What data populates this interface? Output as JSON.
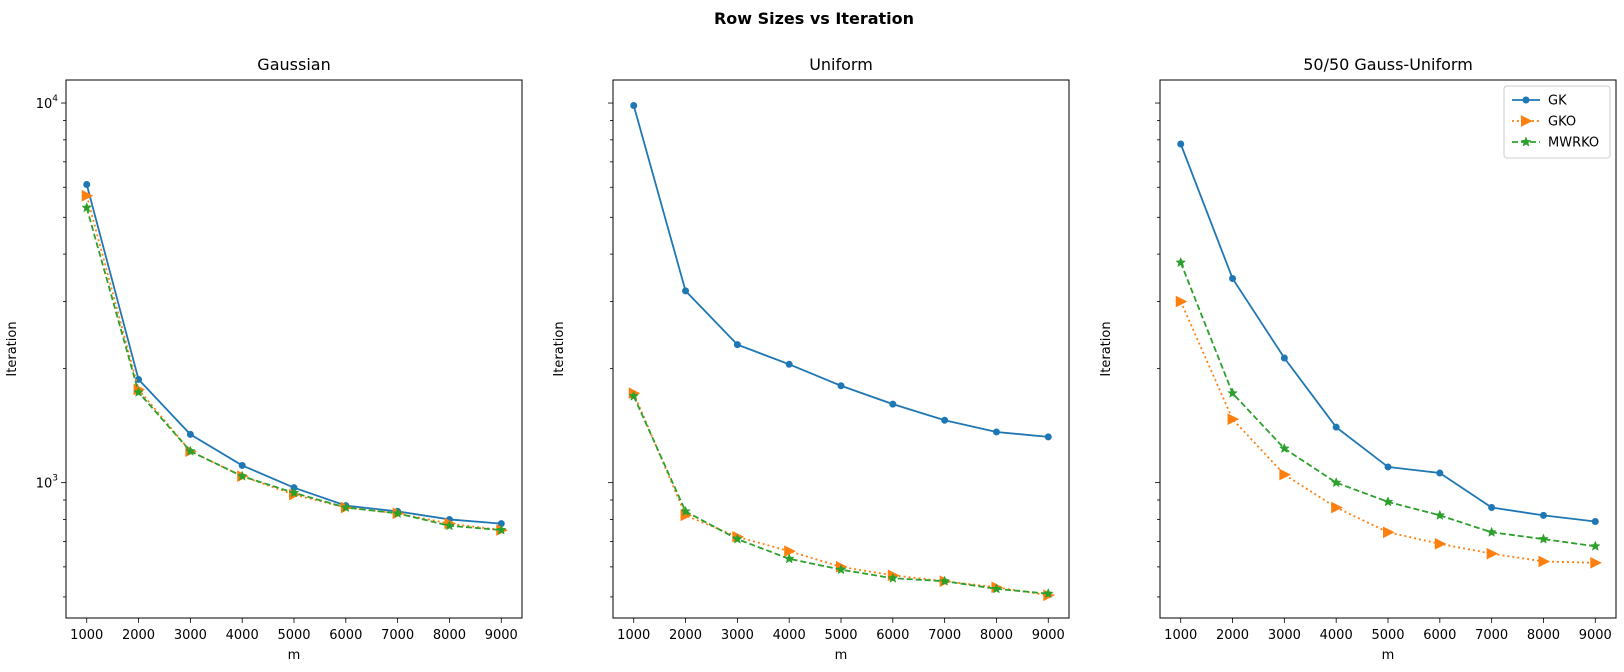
{
  "figure": {
    "suptitle": "Row Sizes vs Iteration"
  },
  "chart_data": [
    {
      "type": "line",
      "title": "Gaussian",
      "xlabel": "m",
      "ylabel": "Iteration",
      "yscale": "log",
      "xlim": [
        600,
        9400
      ],
      "ylim": [
        440,
        11500
      ],
      "x": [
        1000,
        2000,
        3000,
        4000,
        5000,
        6000,
        7000,
        8000,
        9000
      ],
      "xticks": [
        "1000",
        "2000",
        "3000",
        "4000",
        "5000",
        "6000",
        "7000",
        "8000",
        "9000"
      ],
      "yticks": [
        {
          "value": 1000,
          "label": "10³"
        },
        {
          "value": 10000,
          "label": "10⁴"
        }
      ],
      "grid": false,
      "series": [
        {
          "name": "GK",
          "color": "#1f77b4",
          "dash": "solid",
          "marker": "circle",
          "values": [
            6100,
            1870,
            1340,
            1110,
            970,
            870,
            840,
            800,
            780
          ]
        },
        {
          "name": "GKO",
          "color": "#ff7f0e",
          "dash": "dotted",
          "marker": "triangle-right",
          "values": [
            5700,
            1760,
            1210,
            1040,
            930,
            860,
            830,
            780,
            750
          ]
        },
        {
          "name": "MWRKO",
          "color": "#2ca02c",
          "dash": "dashed",
          "marker": "star",
          "values": [
            5300,
            1730,
            1210,
            1040,
            940,
            860,
            830,
            770,
            750
          ]
        }
      ]
    },
    {
      "type": "line",
      "title": "Uniform",
      "xlabel": "m",
      "ylabel": "Iteration",
      "yscale": "log",
      "xlim": [
        600,
        9400
      ],
      "ylim": [
        440,
        11500
      ],
      "x": [
        1000,
        2000,
        3000,
        4000,
        5000,
        6000,
        7000,
        8000,
        9000
      ],
      "xticks": [
        "1000",
        "2000",
        "3000",
        "4000",
        "5000",
        "6000",
        "7000",
        "8000",
        "9000"
      ],
      "grid": false,
      "series": [
        {
          "name": "GK",
          "color": "#1f77b4",
          "dash": "solid",
          "marker": "circle",
          "values": [
            9850,
            3200,
            2310,
            2050,
            1800,
            1610,
            1460,
            1360,
            1320
          ]
        },
        {
          "name": "GKO",
          "color": "#ff7f0e",
          "dash": "dotted",
          "marker": "triangle-right",
          "values": [
            1720,
            820,
            720,
            660,
            600,
            570,
            550,
            530,
            505
          ]
        },
        {
          "name": "MWRKO",
          "color": "#2ca02c",
          "dash": "dashed",
          "marker": "star",
          "values": [
            1690,
            840,
            710,
            630,
            590,
            560,
            550,
            525,
            510
          ]
        }
      ]
    },
    {
      "type": "line",
      "title": "50/50 Gauss-Uniform",
      "xlabel": "m",
      "ylabel": "Iteration",
      "yscale": "log",
      "xlim": [
        600,
        9400
      ],
      "ylim": [
        440,
        11500
      ],
      "x": [
        1000,
        2000,
        3000,
        4000,
        5000,
        6000,
        7000,
        8000,
        9000
      ],
      "xticks": [
        "1000",
        "2000",
        "3000",
        "4000",
        "5000",
        "6000",
        "7000",
        "8000",
        "9000"
      ],
      "grid": false,
      "legend": "top-right",
      "series": [
        {
          "name": "GK",
          "color": "#1f77b4",
          "dash": "solid",
          "marker": "circle",
          "values": [
            7800,
            3450,
            2130,
            1400,
            1100,
            1060,
            860,
            820,
            790
          ]
        },
        {
          "name": "GKO",
          "color": "#ff7f0e",
          "dash": "dotted",
          "marker": "triangle-right",
          "values": [
            3000,
            1470,
            1050,
            860,
            740,
            690,
            650,
            620,
            615
          ]
        },
        {
          "name": "MWRKO",
          "color": "#2ca02c",
          "dash": "dashed",
          "marker": "star",
          "values": [
            3800,
            1720,
            1230,
            1000,
            890,
            820,
            740,
            710,
            680
          ]
        }
      ]
    }
  ]
}
